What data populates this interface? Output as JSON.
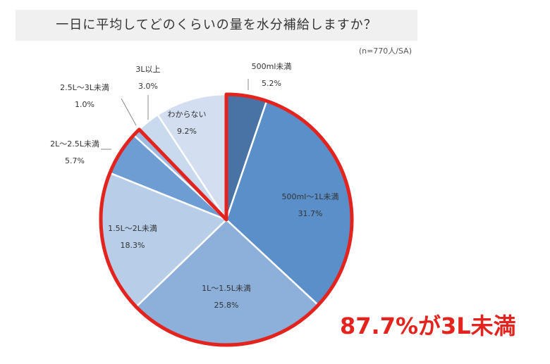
{
  "title": "一日に平均してどのくらいの量を水分補給しますか？",
  "note": "(n=770人/SA)",
  "callout": "87.7%が3L未満",
  "chart_data": {
    "type": "pie",
    "title": "一日に平均してどのくらいの量を水分補給しますか？",
    "start": "12 o'clock, clockwise",
    "slices": [
      {
        "label": "500ml未満",
        "value": 5.2,
        "value_label": "5.2%",
        "color": "#4a73a5"
      },
      {
        "label": "500ml～1L未満",
        "value": 31.7,
        "value_label": "31.7%",
        "color": "#5b8fc9"
      },
      {
        "label": "1L～1.5L未満",
        "value": 25.8,
        "value_label": "25.8%",
        "color": "#8cb0da"
      },
      {
        "label": "1.5L～2L未満",
        "value": 18.3,
        "value_label": "18.3%",
        "color": "#b7cde8"
      },
      {
        "label": "2L～2.5L未満",
        "value": 5.7,
        "value_label": "5.7%",
        "color": "#6e9dd3"
      },
      {
        "label": "2.5L～3L未満",
        "value": 1.0,
        "value_label": "1.0%",
        "color": "#9bbbe0"
      },
      {
        "label": "3L以上",
        "value": 3.0,
        "value_label": "3.0%",
        "color": "#c9d9ee"
      },
      {
        "label": "わからない",
        "value": 9.2,
        "value_label": "9.2%",
        "color": "#d3def0"
      }
    ],
    "highlight": {
      "from_slice": 0,
      "to_slice": 5,
      "total": 87.7,
      "color": "#e3231e"
    }
  }
}
